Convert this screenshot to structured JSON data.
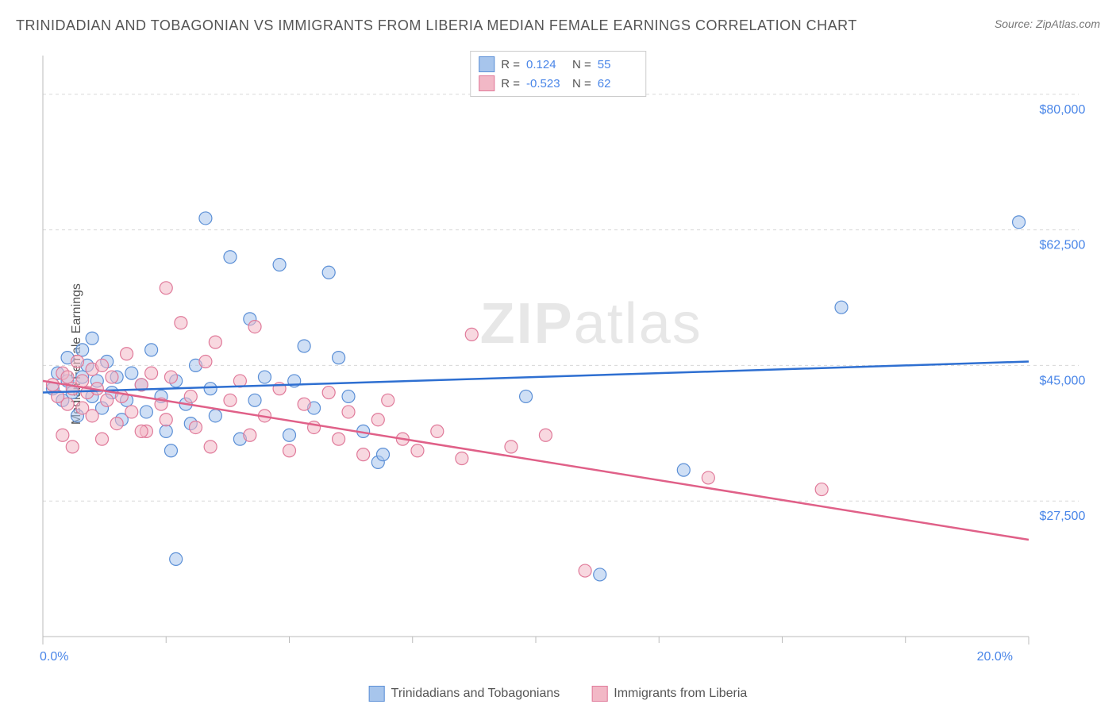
{
  "title": "TRINIDADIAN AND TOBAGONIAN VS IMMIGRANTS FROM LIBERIA MEDIAN FEMALE EARNINGS CORRELATION CHART",
  "source": "Source: ZipAtlas.com",
  "y_axis_label": "Median Female Earnings",
  "watermark_bold": "ZIP",
  "watermark_thin": "atlas",
  "chart": {
    "type": "scatter",
    "xlim": [
      0,
      20
    ],
    "ylim": [
      10000,
      85000
    ],
    "x_tick_labels": [
      {
        "pos": 0,
        "label": "0.0%"
      },
      {
        "pos": 20,
        "label": "20.0%"
      }
    ],
    "x_minor_ticks": [
      2.5,
      5,
      7.5,
      10,
      12.5,
      15,
      17.5
    ],
    "y_tick_labels": [
      {
        "pos": 27500,
        "label": "$27,500"
      },
      {
        "pos": 45000,
        "label": "$45,000"
      },
      {
        "pos": 62500,
        "label": "$62,500"
      },
      {
        "pos": 80000,
        "label": "$80,000"
      }
    ],
    "grid_color": "#d8d8d8",
    "axis_color": "#bbbbbb",
    "background_color": "#ffffff",
    "marker_radius": 8,
    "marker_opacity": 0.55,
    "line_width": 2.5,
    "series": [
      {
        "name": "Trinidadians and Tobagonians",
        "color_fill": "#a7c5ec",
        "color_stroke": "#5b8fd6",
        "line_color": "#2e6fd1",
        "r": "0.124",
        "n": "55",
        "trend": {
          "x1": 0,
          "y1": 41500,
          "x2": 20,
          "y2": 45500
        },
        "points": [
          [
            0.2,
            42000
          ],
          [
            0.3,
            44000
          ],
          [
            0.4,
            40500
          ],
          [
            0.5,
            43000
          ],
          [
            0.5,
            46000
          ],
          [
            0.6,
            41500
          ],
          [
            0.7,
            38500
          ],
          [
            0.8,
            47000
          ],
          [
            0.8,
            43500
          ],
          [
            0.9,
            45000
          ],
          [
            1.0,
            41000
          ],
          [
            1.0,
            48500
          ],
          [
            1.1,
            43000
          ],
          [
            1.2,
            39500
          ],
          [
            1.3,
            45500
          ],
          [
            1.4,
            41500
          ],
          [
            1.5,
            43500
          ],
          [
            1.6,
            38000
          ],
          [
            1.7,
            40500
          ],
          [
            1.8,
            44000
          ],
          [
            2.0,
            42500
          ],
          [
            2.1,
            39000
          ],
          [
            2.2,
            47000
          ],
          [
            2.4,
            41000
          ],
          [
            2.5,
            36500
          ],
          [
            2.6,
            34000
          ],
          [
            2.7,
            43000
          ],
          [
            2.9,
            40000
          ],
          [
            3.0,
            37500
          ],
          [
            3.1,
            45000
          ],
          [
            3.3,
            64000
          ],
          [
            3.4,
            42000
          ],
          [
            3.5,
            38500
          ],
          [
            3.8,
            59000
          ],
          [
            4.0,
            35500
          ],
          [
            4.2,
            51000
          ],
          [
            4.3,
            40500
          ],
          [
            4.5,
            43500
          ],
          [
            4.8,
            58000
          ],
          [
            5.0,
            36000
          ],
          [
            5.1,
            43000
          ],
          [
            5.3,
            47500
          ],
          [
            5.5,
            39500
          ],
          [
            5.8,
            57000
          ],
          [
            6.0,
            46000
          ],
          [
            6.2,
            41000
          ],
          [
            6.5,
            36500
          ],
          [
            6.8,
            32500
          ],
          [
            6.9,
            33500
          ],
          [
            9.8,
            41000
          ],
          [
            13.0,
            31500
          ],
          [
            16.2,
            52500
          ],
          [
            19.8,
            63500
          ],
          [
            2.7,
            20000
          ],
          [
            11.3,
            18000
          ]
        ]
      },
      {
        "name": "Immigrants from Liberia",
        "color_fill": "#f2b8c6",
        "color_stroke": "#e07a9a",
        "line_color": "#e06088",
        "r": "-0.523",
        "n": "62",
        "trend": {
          "x1": 0,
          "y1": 43000,
          "x2": 20,
          "y2": 22500
        },
        "points": [
          [
            0.2,
            42500
          ],
          [
            0.3,
            41000
          ],
          [
            0.4,
            44000
          ],
          [
            0.5,
            40000
          ],
          [
            0.5,
            43500
          ],
          [
            0.6,
            42000
          ],
          [
            0.7,
            45500
          ],
          [
            0.8,
            39500
          ],
          [
            0.8,
            43000
          ],
          [
            0.9,
            41500
          ],
          [
            1.0,
            44500
          ],
          [
            1.0,
            38500
          ],
          [
            1.1,
            42000
          ],
          [
            1.2,
            45000
          ],
          [
            1.3,
            40500
          ],
          [
            1.4,
            43500
          ],
          [
            1.5,
            37500
          ],
          [
            1.6,
            41000
          ],
          [
            1.7,
            46500
          ],
          [
            1.8,
            39000
          ],
          [
            2.0,
            42500
          ],
          [
            2.1,
            36500
          ],
          [
            2.2,
            44000
          ],
          [
            2.4,
            40000
          ],
          [
            2.5,
            38000
          ],
          [
            2.5,
            55000
          ],
          [
            2.6,
            43500
          ],
          [
            2.8,
            50500
          ],
          [
            3.0,
            41000
          ],
          [
            3.1,
            37000
          ],
          [
            3.3,
            45500
          ],
          [
            3.4,
            34500
          ],
          [
            3.5,
            48000
          ],
          [
            3.8,
            40500
          ],
          [
            4.0,
            43000
          ],
          [
            4.2,
            36000
          ],
          [
            4.3,
            50000
          ],
          [
            4.5,
            38500
          ],
          [
            4.8,
            42000
          ],
          [
            5.0,
            34000
          ],
          [
            5.3,
            40000
          ],
          [
            5.5,
            37000
          ],
          [
            5.8,
            41500
          ],
          [
            6.0,
            35500
          ],
          [
            6.2,
            39000
          ],
          [
            6.5,
            33500
          ],
          [
            6.8,
            38000
          ],
          [
            7.0,
            40500
          ],
          [
            7.3,
            35500
          ],
          [
            7.6,
            34000
          ],
          [
            8.0,
            36500
          ],
          [
            8.5,
            33000
          ],
          [
            8.7,
            49000
          ],
          [
            9.5,
            34500
          ],
          [
            10.2,
            36000
          ],
          [
            11.0,
            18500
          ],
          [
            13.5,
            30500
          ],
          [
            15.8,
            29000
          ],
          [
            0.4,
            36000
          ],
          [
            1.2,
            35500
          ],
          [
            2.0,
            36500
          ],
          [
            0.6,
            34500
          ]
        ]
      }
    ]
  },
  "bottom_legend": [
    {
      "label": "Trinidadians and Tobagonians",
      "fill": "#a7c5ec",
      "stroke": "#5b8fd6"
    },
    {
      "label": "Immigrants from Liberia",
      "fill": "#f2b8c6",
      "stroke": "#e07a9a"
    }
  ]
}
